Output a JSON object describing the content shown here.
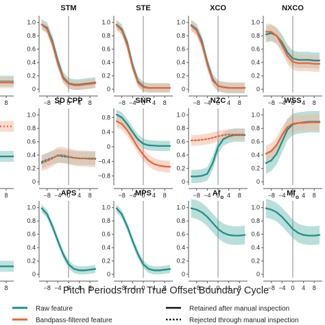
{
  "figure": {
    "xlabel": "Pitch Periods from True Offset Boundary Cycle"
  },
  "legend": {
    "raw": "Raw feature",
    "bandpass": "Bandpass-filtered feature",
    "retained": "Retained after manual inspection",
    "rejected": "Rejected through manual inspection"
  },
  "colors": {
    "raw": "#1f8f87",
    "bandpass": "#e8643a",
    "raw_band": "#7fc4be",
    "bandpass_band": "#f4b9a3",
    "axis": "#555555",
    "zero_line": "#888888"
  },
  "chart_data": [
    {
      "title": "STM",
      "title_parts": [
        "STM"
      ],
      "type": "line",
      "yticks": [
        0,
        0.2,
        0.4,
        0.6,
        0.8,
        1.0
      ],
      "ytick_labels": [
        "0",
        "0.2",
        "0.4",
        "0.6",
        "0.8",
        "1.0"
      ],
      "ylim": [
        -0.05,
        1.1
      ],
      "xticks": [
        -8,
        -4,
        0,
        4,
        8
      ],
      "xtick_labels": [
        "−8",
        "−4",
        "0",
        "4",
        "8"
      ],
      "xlim": [
        -11,
        11
      ],
      "x": [
        -10,
        -8,
        -6,
        -4,
        -2,
        0,
        2,
        4,
        6,
        8,
        10
      ],
      "series": [
        {
          "key": "raw",
          "style": "solid",
          "values": [
            0.97,
            0.92,
            0.72,
            0.42,
            0.18,
            0.09,
            0.07,
            0.07,
            0.08,
            0.09,
            0.1
          ],
          "band": 0.08
        },
        {
          "key": "bandpass",
          "style": "solid",
          "values": [
            0.97,
            0.9,
            0.68,
            0.38,
            0.16,
            0.08,
            0.06,
            0.06,
            0.07,
            0.08,
            0.09
          ],
          "band": 0.07
        }
      ]
    },
    {
      "title": "STE",
      "title_parts": [
        "STE"
      ],
      "type": "line",
      "yticks": [
        0,
        0.2,
        0.4,
        0.6,
        0.8,
        1.0
      ],
      "ytick_labels": [
        "0",
        "0.2",
        "0.4",
        "0.6",
        "0.8",
        "1.0"
      ],
      "ylim": [
        -0.05,
        1.1
      ],
      "xticks": [
        -8,
        -4,
        0,
        4,
        8
      ],
      "xtick_labels": [
        "−8",
        "−4",
        "0",
        "4",
        "8"
      ],
      "xlim": [
        -11,
        11
      ],
      "x": [
        -10,
        -8,
        -6,
        -4,
        -2,
        0,
        2,
        4,
        6,
        8,
        10
      ],
      "series": [
        {
          "key": "raw",
          "style": "solid",
          "values": [
            0.97,
            0.9,
            0.7,
            0.36,
            0.12,
            0.04,
            0.02,
            0.02,
            0.02,
            0.02,
            0.02
          ],
          "band": 0.07
        },
        {
          "key": "bandpass",
          "style": "solid",
          "values": [
            0.96,
            0.88,
            0.66,
            0.33,
            0.1,
            0.03,
            0.02,
            0.02,
            0.02,
            0.02,
            0.02
          ],
          "band": 0.07
        }
      ]
    },
    {
      "title": "XCO",
      "title_parts": [
        "XCO"
      ],
      "type": "line",
      "yticks": [
        0,
        0.2,
        0.4,
        0.6,
        0.8,
        1.0
      ],
      "ytick_labels": [
        "0",
        "0.2",
        "0.4",
        "0.6",
        "0.8",
        "1.0"
      ],
      "ylim": [
        -0.05,
        1.1
      ],
      "xticks": [
        -8,
        -4,
        0,
        4,
        8
      ],
      "xtick_labels": [
        "−8",
        "−4",
        "0",
        "4",
        "8"
      ],
      "xlim": [
        -11,
        11
      ],
      "x": [
        -10,
        -8,
        -6,
        -4,
        -2,
        0,
        2,
        4,
        6,
        8,
        10
      ],
      "series": [
        {
          "key": "raw",
          "style": "solid",
          "values": [
            0.96,
            0.9,
            0.72,
            0.4,
            0.15,
            0.05,
            0.03,
            0.02,
            0.02,
            0.02,
            0.02
          ],
          "band": 0.08
        },
        {
          "key": "bandpass",
          "style": "solid",
          "values": [
            0.95,
            0.88,
            0.68,
            0.37,
            0.13,
            0.05,
            0.03,
            0.02,
            0.02,
            0.02,
            0.02
          ],
          "band": 0.08
        }
      ]
    },
    {
      "title": "NXCO",
      "title_parts": [
        "NXCO"
      ],
      "type": "line",
      "yticks": [
        0,
        0.2,
        0.4,
        0.6,
        0.8,
        1.0
      ],
      "ytick_labels": [
        "0",
        "0.2",
        "0.4",
        "0.6",
        "0.8",
        "1.0"
      ],
      "ylim": [
        -0.05,
        1.1
      ],
      "xticks": [
        -8,
        -4,
        0,
        4,
        8
      ],
      "xtick_labels": [
        "−8",
        "−4",
        "0",
        "4",
        "8"
      ],
      "xlim": [
        -11,
        11
      ],
      "x": [
        -10,
        -8,
        -6,
        -4,
        -2,
        0,
        2,
        4,
        6,
        8,
        10
      ],
      "series": [
        {
          "key": "raw",
          "style": "solid",
          "values": [
            0.82,
            0.84,
            0.8,
            0.7,
            0.55,
            0.46,
            0.44,
            0.44,
            0.44,
            0.43,
            0.43
          ],
          "band": 0.12
        },
        {
          "key": "bandpass",
          "style": "solid",
          "values": [
            0.86,
            0.86,
            0.8,
            0.66,
            0.5,
            0.41,
            0.39,
            0.39,
            0.39,
            0.38,
            0.38
          ],
          "band": 0.12
        }
      ]
    },
    {
      "title": "SD CPP",
      "title_parts": [
        "SD CPP"
      ],
      "type": "line",
      "yticks": [
        0,
        0.2,
        0.4,
        0.6,
        0.8,
        1.0
      ],
      "ytick_labels": [
        "0",
        "0.2",
        "0.4",
        "0.6",
        "0.8",
        "1.0"
      ],
      "ylim": [
        -0.05,
        1.1
      ],
      "xticks": [
        -8,
        -4,
        0,
        4,
        8
      ],
      "xtick_labels": [
        "−8",
        "−4",
        "0",
        "4",
        "8"
      ],
      "xlim": [
        -11,
        11
      ],
      "x": [
        -10,
        -8,
        -6,
        -4,
        -2,
        0,
        2,
        4,
        6,
        8,
        10
      ],
      "series": [
        {
          "key": "raw",
          "style": "dotted",
          "values": [
            0.3,
            0.33,
            0.36,
            0.39,
            0.38,
            0.37,
            0.36,
            0.35,
            0.35,
            0.35,
            0.35
          ],
          "band": 0.1
        },
        {
          "key": "bandpass",
          "style": "dotted",
          "values": [
            0.28,
            0.31,
            0.35,
            0.4,
            0.4,
            0.38,
            0.36,
            0.35,
            0.35,
            0.34,
            0.34
          ],
          "band": 0.12
        }
      ]
    },
    {
      "title": "SNR",
      "title_parts": [
        "SNR"
      ],
      "type": "line",
      "yticks": [
        -0.8,
        -0.4,
        0,
        0.4,
        0.8
      ],
      "ytick_labels": [
        "−0.8",
        "−0.4",
        "0",
        "0.4",
        "0.8"
      ],
      "ylim": [
        -1.05,
        1.05
      ],
      "xticks": [
        -8,
        -4,
        0,
        4,
        8
      ],
      "xtick_labels": [
        "−8",
        "−4",
        "0",
        "4",
        "8"
      ],
      "xlim": [
        -11,
        11
      ],
      "x": [
        -10,
        -8,
        -6,
        -4,
        -2,
        0,
        2,
        4,
        6,
        8,
        10
      ],
      "series": [
        {
          "key": "raw",
          "style": "solid",
          "values": [
            0.88,
            0.8,
            0.62,
            0.4,
            0.2,
            0.08,
            0.04,
            0.03,
            0.02,
            0.02,
            0.02
          ],
          "band": 0.14
        },
        {
          "key": "bandpass",
          "style": "solid",
          "values": [
            0.7,
            0.62,
            0.45,
            0.22,
            -0.02,
            -0.22,
            -0.38,
            -0.47,
            -0.52,
            -0.54,
            -0.55
          ],
          "band": 0.16
        }
      ]
    },
    {
      "title": "NZC",
      "title_parts": [
        "NZC"
      ],
      "type": "line",
      "yticks": [
        0,
        0.2,
        0.4,
        0.6,
        0.8,
        1.0
      ],
      "ytick_labels": [
        "0",
        "0.2",
        "0.4",
        "0.6",
        "0.8",
        "1.0"
      ],
      "ylim": [
        -0.05,
        1.1
      ],
      "xticks": [
        -8,
        -4,
        0,
        4,
        8
      ],
      "xtick_labels": [
        "−8",
        "−4",
        "0",
        "4",
        "8"
      ],
      "xlim": [
        -11,
        11
      ],
      "x": [
        -10,
        -8,
        -6,
        -4,
        -2,
        0,
        2,
        4,
        6,
        8,
        10
      ],
      "series": [
        {
          "key": "raw",
          "style": "solid",
          "values": [
            0.08,
            0.08,
            0.09,
            0.12,
            0.28,
            0.52,
            0.64,
            0.68,
            0.7,
            0.7,
            0.7
          ],
          "band": 0.1
        },
        {
          "key": "bandpass",
          "style": "dotted",
          "values": [
            0.62,
            0.62,
            0.63,
            0.64,
            0.66,
            0.68,
            0.7,
            0.71,
            0.71,
            0.71,
            0.71
          ],
          "band": 0.08
        }
      ]
    },
    {
      "title": "WSS",
      "title_parts": [
        "WSS"
      ],
      "type": "line",
      "yticks": [
        0,
        0.2,
        0.4,
        0.6,
        0.8,
        1.0
      ],
      "ytick_labels": [
        "0",
        "0.2",
        "0.4",
        "0.6",
        "0.8",
        "1.0"
      ],
      "ylim": [
        -0.05,
        1.1
      ],
      "xticks": [
        -8,
        -4,
        0,
        4,
        8
      ],
      "xtick_labels": [
        "−8",
        "−4",
        "0",
        "4",
        "8"
      ],
      "xlim": [
        -11,
        11
      ],
      "x": [
        -10,
        -8,
        -6,
        -4,
        -2,
        0,
        2,
        4,
        6,
        8,
        10
      ],
      "series": [
        {
          "key": "raw",
          "style": "solid",
          "values": [
            0.28,
            0.32,
            0.42,
            0.6,
            0.78,
            0.86,
            0.88,
            0.89,
            0.9,
            0.9,
            0.9
          ],
          "band": 0.16
        },
        {
          "key": "bandpass",
          "style": "solid",
          "values": [
            0.42,
            0.46,
            0.55,
            0.7,
            0.82,
            0.87,
            0.88,
            0.88,
            0.89,
            0.89,
            0.89
          ],
          "band": 0.12
        }
      ]
    },
    {
      "title": "APS",
      "title_parts": [
        "APS"
      ],
      "type": "line",
      "yticks": [
        0,
        0.2,
        0.4,
        0.6,
        0.8,
        1.0
      ],
      "ytick_labels": [
        "0",
        "0.2",
        "0.4",
        "0.6",
        "0.8",
        "1.0"
      ],
      "ylim": [
        -0.05,
        1.1
      ],
      "xticks": [
        -8,
        -4,
        0,
        4,
        8
      ],
      "xtick_labels": [
        "−8",
        "−4",
        "0",
        "4",
        "8"
      ],
      "xlim": [
        -11,
        11
      ],
      "x": [
        -10,
        -8,
        -6,
        -4,
        -2,
        0,
        2,
        4,
        6,
        8,
        10
      ],
      "series": [
        {
          "key": "raw",
          "style": "solid",
          "values": [
            0.99,
            0.9,
            0.72,
            0.5,
            0.3,
            0.15,
            0.08,
            0.06,
            0.06,
            0.07,
            0.08
          ],
          "band": 0.06
        }
      ]
    },
    {
      "title": "MPS",
      "title_parts": [
        "MPS"
      ],
      "type": "line",
      "yticks": [
        0,
        0.2,
        0.4,
        0.6,
        0.8,
        1.0
      ],
      "ytick_labels": [
        "0",
        "0.2",
        "0.4",
        "0.6",
        "0.8",
        "1.0"
      ],
      "ylim": [
        -0.05,
        1.1
      ],
      "xticks": [
        -8,
        -4,
        0,
        4,
        8
      ],
      "xtick_labels": [
        "−8",
        "−4",
        "0",
        "4",
        "8"
      ],
      "xlim": [
        -11,
        11
      ],
      "x": [
        -10,
        -8,
        -6,
        -4,
        -2,
        0,
        2,
        4,
        6,
        8,
        10
      ],
      "series": [
        {
          "key": "raw",
          "style": "solid",
          "values": [
            0.99,
            0.9,
            0.72,
            0.5,
            0.3,
            0.15,
            0.08,
            0.06,
            0.06,
            0.07,
            0.08
          ],
          "band": 0.06
        }
      ]
    },
    {
      "title": "Afo",
      "title_parts": [
        "Af",
        "o"
      ],
      "type": "line",
      "yticks": [
        0,
        0.2,
        0.4,
        0.6,
        0.8,
        1.0
      ],
      "ytick_labels": [
        "0",
        "0.2",
        "0.4",
        "0.6",
        "0.8",
        "1.0"
      ],
      "ylim": [
        -0.05,
        1.1
      ],
      "xticks": [
        -8,
        -4,
        0,
        4,
        8
      ],
      "xtick_labels": [
        "−8",
        "−4",
        "0",
        "4",
        "8"
      ],
      "xlim": [
        -11,
        11
      ],
      "x": [
        -10,
        -8,
        -6,
        -4,
        -2,
        0,
        2,
        4,
        6,
        8,
        10
      ],
      "series": [
        {
          "key": "raw",
          "style": "solid",
          "values": [
            0.99,
            0.97,
            0.93,
            0.86,
            0.77,
            0.68,
            0.62,
            0.59,
            0.58,
            0.58,
            0.59
          ],
          "band": 0.14
        }
      ]
    },
    {
      "title": "Mfo",
      "title_parts": [
        "Mf",
        "o"
      ],
      "type": "line",
      "yticks": [
        0,
        0.2,
        0.4,
        0.6,
        0.8,
        1.0
      ],
      "ytick_labels": [
        "0",
        "0.2",
        "0.4",
        "0.6",
        "0.8",
        "1.0"
      ],
      "ylim": [
        -0.05,
        1.1
      ],
      "xticks": [
        -8,
        -4,
        0,
        4,
        8
      ],
      "xtick_labels": [
        "−8",
        "−4",
        "0",
        "4",
        "8"
      ],
      "xlim": [
        -11,
        11
      ],
      "x": [
        -10,
        -8,
        -6,
        -4,
        -2,
        0,
        2,
        4,
        6,
        8,
        10
      ],
      "series": [
        {
          "key": "raw",
          "style": "solid",
          "values": [
            0.99,
            0.97,
            0.93,
            0.86,
            0.77,
            0.68,
            0.62,
            0.59,
            0.58,
            0.58,
            0.59
          ],
          "band": 0.14
        }
      ]
    }
  ],
  "cropped_left_column": {
    "xtick_label": "8",
    "series": [
      {
        "key": "raw",
        "row": 0,
        "level": 0.12
      },
      {
        "key": "bandpass",
        "row": 0,
        "level": 0.1
      },
      {
        "key": "raw",
        "row": 1,
        "level": 0.38
      },
      {
        "key": "bandpass",
        "row": 1,
        "level": 0.83
      },
      {
        "key": "raw",
        "row": 2,
        "level": 0.12
      }
    ]
  }
}
